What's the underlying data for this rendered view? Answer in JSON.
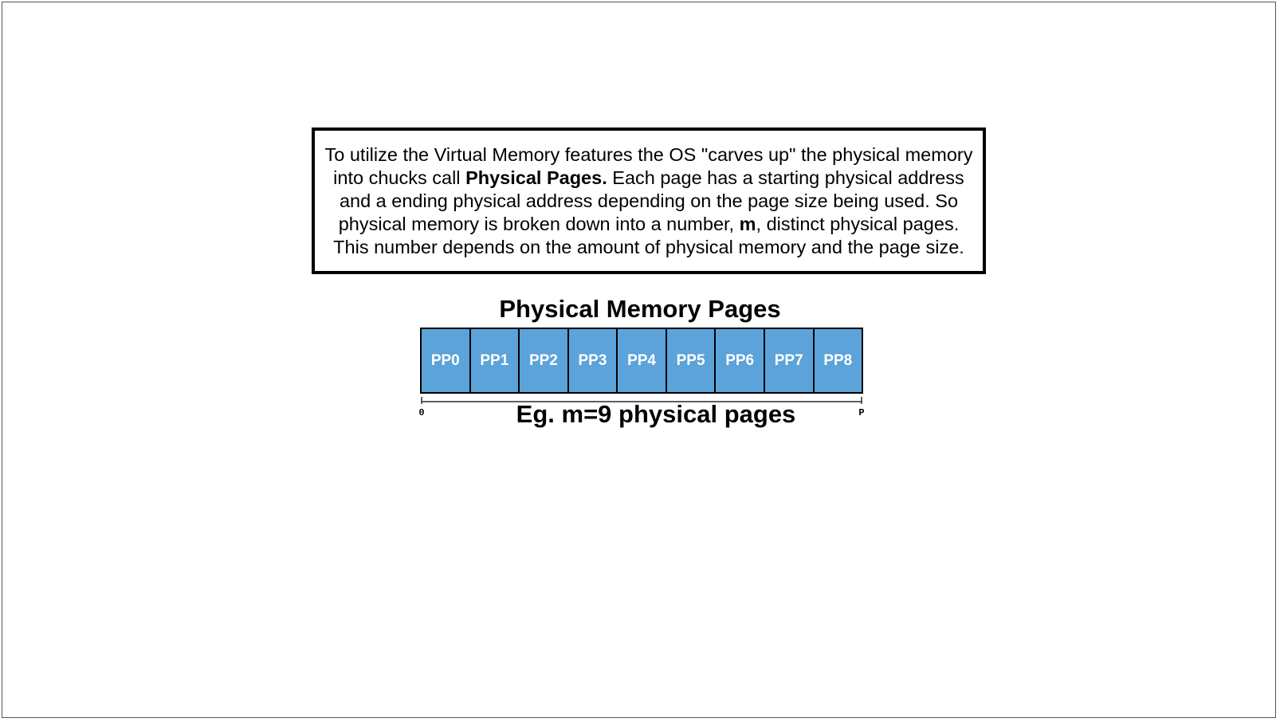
{
  "explanation": {
    "lines": [
      {
        "parts": [
          {
            "text": "To utilize the Virtual Memory features the OS \"carves up\" the physical memory",
            "bold": false
          }
        ]
      },
      {
        "parts": [
          {
            "text": "into chucks call ",
            "bold": false
          },
          {
            "text": "Physical Pages.",
            "bold": true
          },
          {
            "text": "  Each page has a starting physical address",
            "bold": false
          }
        ]
      },
      {
        "parts": [
          {
            "text": "and a ending physical address depending on the page size being used.   So",
            "bold": false
          }
        ]
      },
      {
        "parts": [
          {
            "text": "physical memory is broken down into a number, ",
            "bold": false
          },
          {
            "text": "m",
            "bold": true
          },
          {
            "text": ", distinct physical pages.",
            "bold": false
          }
        ]
      },
      {
        "parts": [
          {
            "text": "This number depends on the amount of physical memory and the page size.",
            "bold": false
          }
        ]
      }
    ]
  },
  "diagram": {
    "title": "Physical Memory Pages",
    "pages": [
      "PP0",
      "PP1",
      "PP2",
      "PP3",
      "PP4",
      "PP5",
      "PP6",
      "PP7",
      "PP8"
    ],
    "axis_start_label": "0",
    "axis_end_label": "P",
    "caption": "Eg. m=9 physical pages",
    "page_fill_color": "#5ba3d9",
    "page_text_color": "#ffffff"
  }
}
